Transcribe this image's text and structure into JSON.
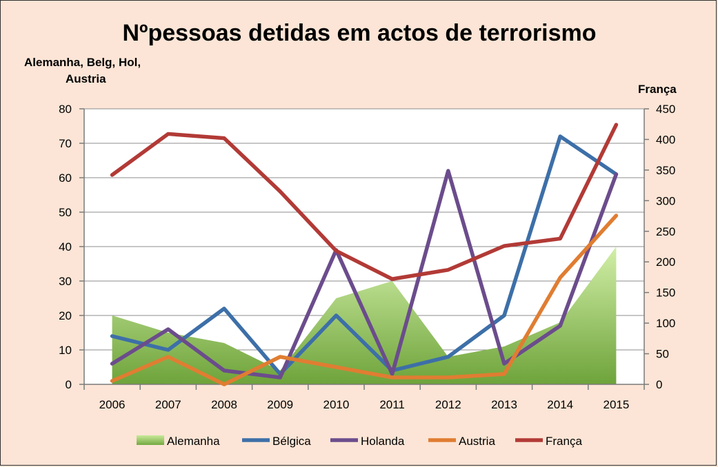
{
  "chart_data": {
    "type": "line",
    "title": "Nºpessoas detidas em actos de terrorismo",
    "ylabel_left": [
      "Alemanha, Belg, Hol,",
      "Austria"
    ],
    "ylabel_right": "França",
    "categories": [
      "2006",
      "2007",
      "2008",
      "2009",
      "2010",
      "2011",
      "2012",
      "2013",
      "2014",
      "2015"
    ],
    "ylim_left": [
      0,
      80
    ],
    "ylim_right": [
      0,
      450
    ],
    "yticks_left": [
      0,
      10,
      20,
      30,
      40,
      50,
      60,
      70,
      80
    ],
    "yticks_right": [
      0,
      50,
      100,
      150,
      200,
      250,
      300,
      350,
      400,
      450
    ],
    "grid": true,
    "legend_position": "bottom",
    "series": [
      {
        "name": "Alemanha",
        "kind": "area",
        "axis": "left",
        "color": "#7fb24a",
        "values": [
          20,
          15,
          12,
          4,
          25,
          30,
          8,
          11,
          18,
          40
        ]
      },
      {
        "name": "Bélgica",
        "kind": "line",
        "axis": "left",
        "color": "#3d6fa8",
        "values": [
          14,
          10,
          22,
          3,
          20,
          4,
          8,
          20,
          72,
          61
        ]
      },
      {
        "name": "Holanda",
        "kind": "line",
        "axis": "left",
        "color": "#6b4c8c",
        "values": [
          6,
          16,
          4,
          2,
          39,
          3,
          62,
          6,
          17,
          61
        ]
      },
      {
        "name": "Austria",
        "kind": "line",
        "axis": "left",
        "color": "#e07d32",
        "values": [
          1,
          8,
          0,
          8,
          5,
          2,
          2,
          3,
          31,
          49
        ]
      },
      {
        "name": "França",
        "kind": "line",
        "axis": "right",
        "color": "#b23a36",
        "values": [
          342,
          409,
          402,
          315,
          218,
          172,
          187,
          226,
          238,
          424
        ]
      }
    ]
  }
}
